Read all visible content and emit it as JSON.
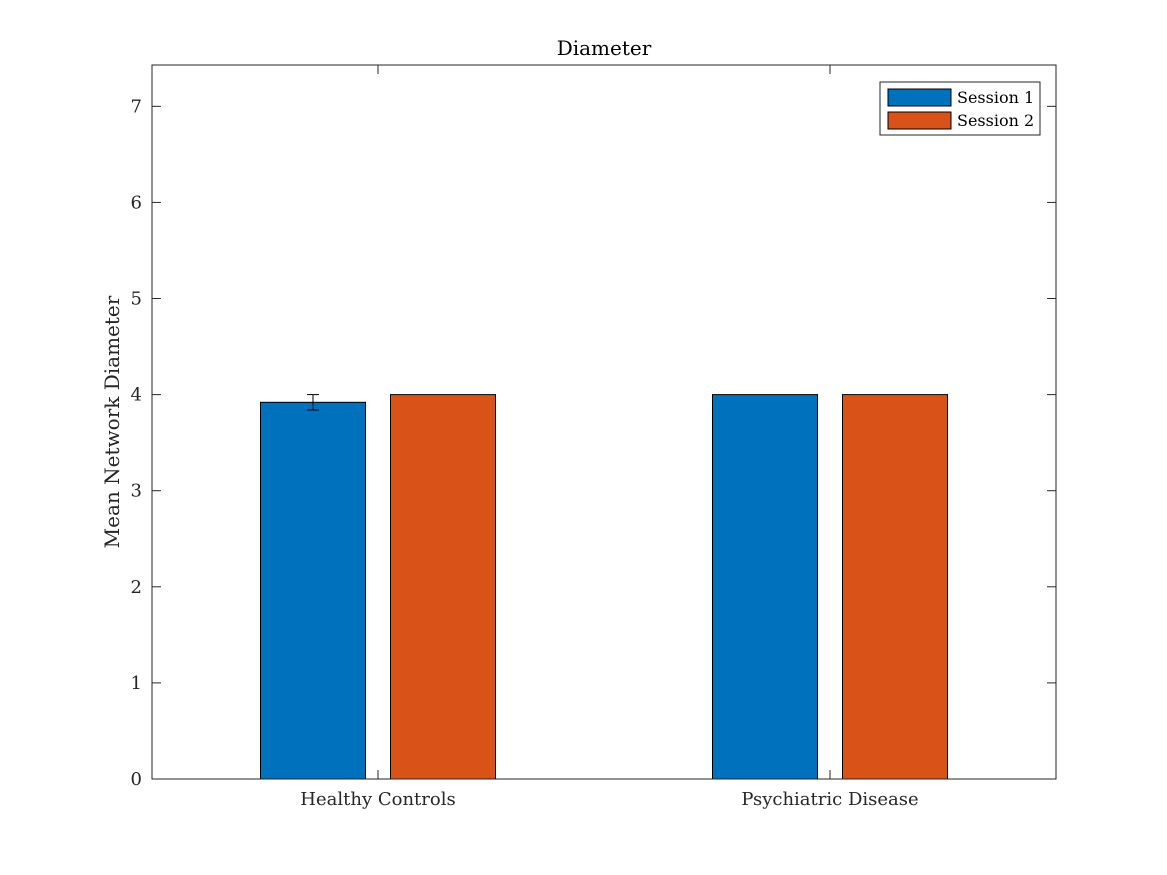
{
  "chart_data": {
    "type": "bar",
    "title": "Diameter",
    "xlabel": "",
    "ylabel": "Mean Network Diameter",
    "categories": [
      "Healthy Controls",
      "Psychiatric Disease"
    ],
    "series": [
      {
        "name": "Session 1",
        "color": "#0072BD",
        "values": [
          3.92,
          4.0
        ],
        "errors": [
          0.08,
          0
        ]
      },
      {
        "name": "Session 2",
        "color": "#D95319",
        "values": [
          4.0,
          4.0
        ],
        "errors": [
          0,
          0
        ]
      }
    ],
    "ylim": [
      0,
      7.43
    ],
    "yticks": [
      0,
      1,
      2,
      3,
      4,
      5,
      6,
      7
    ],
    "grid": false,
    "legend_location": "top-right"
  }
}
